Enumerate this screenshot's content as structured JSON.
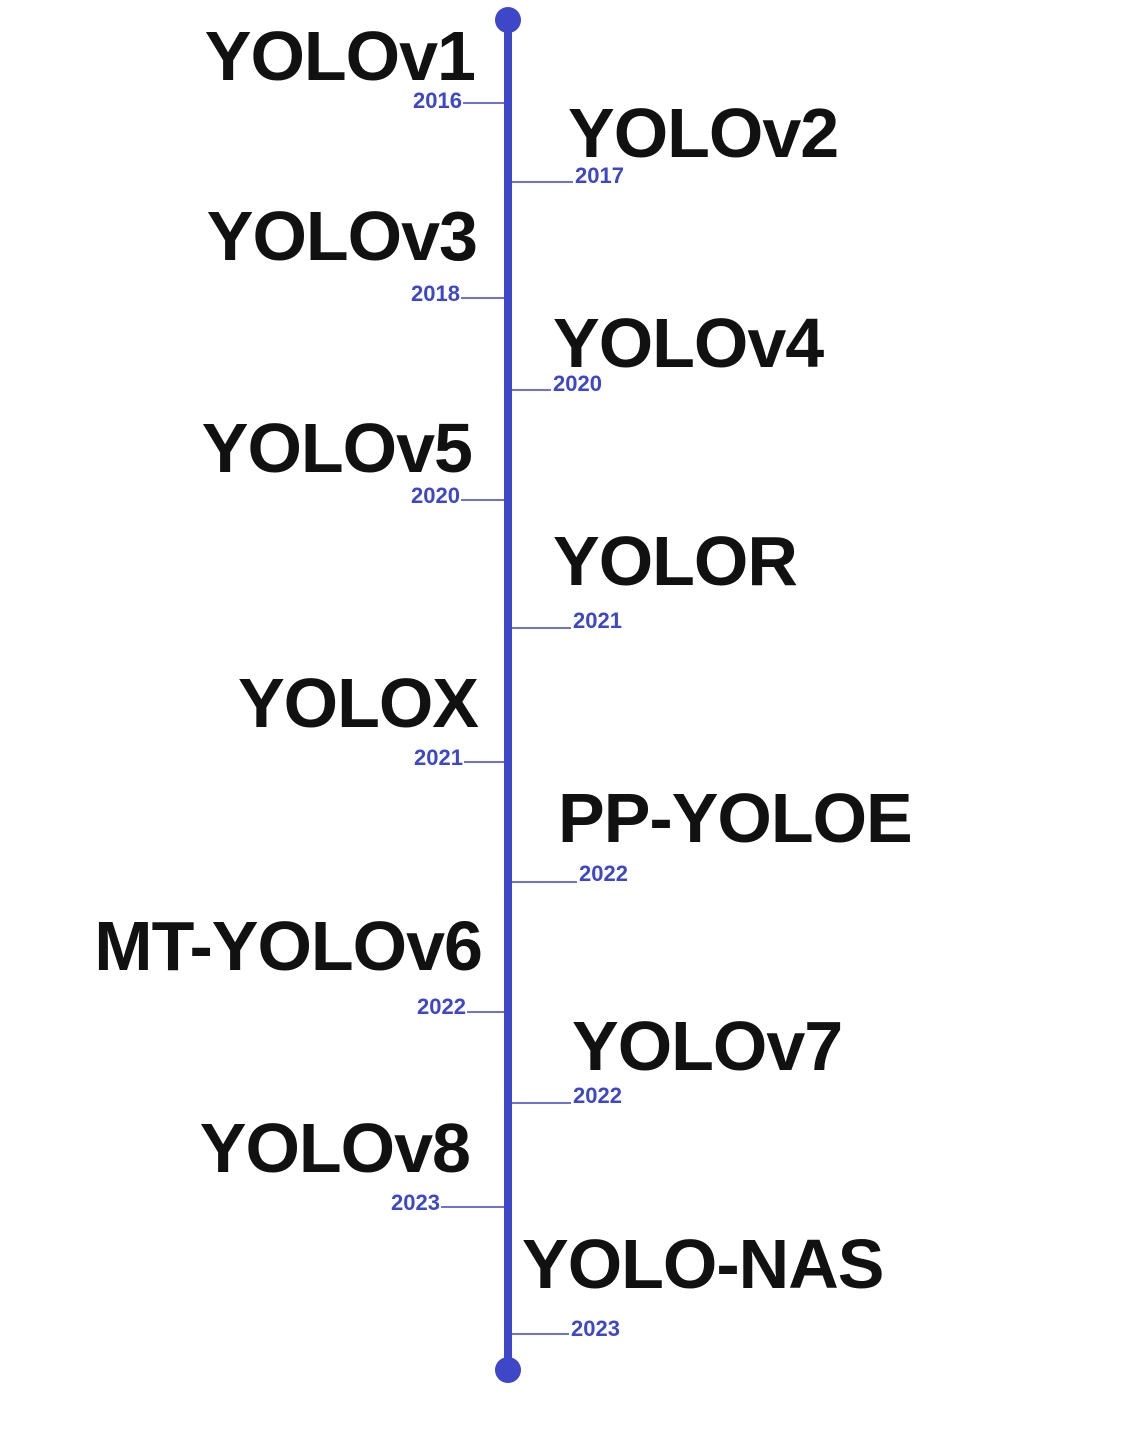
{
  "events": [
    {
      "name": "YOLOv1",
      "year": "2016"
    },
    {
      "name": "YOLOv2",
      "year": "2017"
    },
    {
      "name": "YOLOv3",
      "year": "2018"
    },
    {
      "name": "YOLOv4",
      "year": "2020"
    },
    {
      "name": "YOLOv5",
      "year": "2020"
    },
    {
      "name": "YOLOR",
      "year": "2021"
    },
    {
      "name": "YOLOX",
      "year": "2021"
    },
    {
      "name": "PP-YOLOE",
      "year": "2022"
    },
    {
      "name": "MT-YOLOv6",
      "year": "2022"
    },
    {
      "name": "YOLOv7",
      "year": "2022"
    },
    {
      "name": "YOLOv8",
      "year": "2023"
    },
    {
      "name": "YOLO-NAS",
      "year": "2023"
    }
  ]
}
